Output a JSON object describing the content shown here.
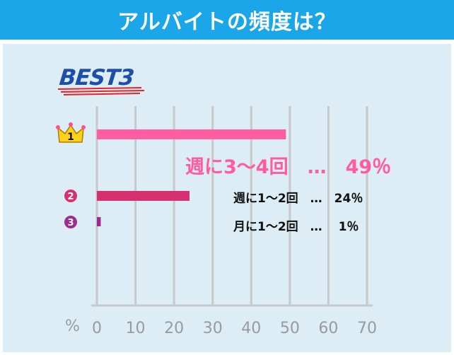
{
  "header": {
    "title": "アルバイトの頻度は？"
  },
  "badge": {
    "text": "BEST3"
  },
  "colors": {
    "header_bg": "#1aa6e8",
    "panel_bg": "#dcedf5",
    "bar1": "#ff5ea3",
    "bar2": "#d6306e",
    "bar3": "#9b2d8c",
    "grid": "#c9c9c9",
    "tick_text": "#9a9a9a"
  },
  "chart_data": {
    "type": "bar",
    "orientation": "horizontal",
    "categories": [
      "週に3〜4回",
      "週に1〜2回",
      "月に1〜2回"
    ],
    "values": [
      49,
      24,
      1
    ],
    "ranks": [
      "1",
      "2",
      "3"
    ],
    "data_labels": [
      "週に3〜4回　…　49％",
      "週に1〜2回　…　24％",
      "月に1〜2回　…　 1％"
    ],
    "xaxis_unit": "%",
    "xlim": [
      0,
      70
    ],
    "xticks": [
      "0",
      "10",
      "20",
      "30",
      "40",
      "50",
      "60",
      "70"
    ],
    "grid": true
  }
}
